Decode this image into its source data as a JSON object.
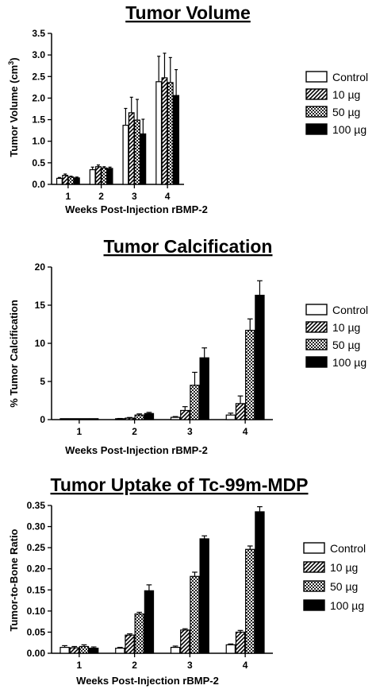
{
  "chart_data": [
    {
      "type": "bar",
      "title": "Tumor Volume",
      "xlabel": "Weeks Post-Injection rBMP-2",
      "ylabel": "Tumor Volume (cm3)",
      "ylabel_main": "Tumor Volume (cm",
      "ylabel_sup": "3",
      "ylabel_close": ")",
      "categories": [
        "1",
        "2",
        "3",
        "4"
      ],
      "ylim": [
        0,
        3.5
      ],
      "yticks": [
        "0.0",
        "0.5",
        "1.0",
        "1.5",
        "2.0",
        "2.5",
        "3.0",
        "3.5"
      ],
      "series": [
        {
          "name": "Control",
          "pattern": "open",
          "values": [
            0.14,
            0.34,
            1.37,
            2.38
          ],
          "errors": [
            0.02,
            0.06,
            0.39,
            0.59
          ]
        },
        {
          "name": "10 µg",
          "pattern": "hatch",
          "values": [
            0.21,
            0.41,
            1.66,
            2.47
          ],
          "errors": [
            0.03,
            0.04,
            0.36,
            0.57
          ]
        },
        {
          "name": "50 µg",
          "pattern": "checker",
          "values": [
            0.17,
            0.38,
            1.49,
            2.36
          ],
          "errors": [
            0.02,
            0.03,
            0.48,
            0.58
          ]
        },
        {
          "name": "100 µg",
          "pattern": "solid",
          "values": [
            0.15,
            0.37,
            1.17,
            2.06
          ],
          "errors": [
            0.02,
            0.03,
            0.34,
            0.6
          ]
        }
      ],
      "legend": "right",
      "grid": false
    },
    {
      "type": "bar",
      "title": "Tumor Calcification",
      "xlabel": "Weeks Post-Injection rBMP-2",
      "ylabel": "% Tumor Calcification",
      "categories": [
        "1",
        "2",
        "3",
        "4"
      ],
      "ylim": [
        0,
        20
      ],
      "yticks": [
        "0",
        "5",
        "10",
        "15",
        "20"
      ],
      "series": [
        {
          "name": "Control",
          "pattern": "open",
          "values": [
            0.05,
            0.1,
            0.3,
            0.6
          ],
          "errors": [
            0.02,
            0.05,
            0.1,
            0.25
          ]
        },
        {
          "name": "10 µg",
          "pattern": "hatch",
          "values": [
            0.05,
            0.2,
            1.2,
            2.1
          ],
          "errors": [
            0.02,
            0.08,
            0.5,
            1.0
          ]
        },
        {
          "name": "50 µg",
          "pattern": "checker",
          "values": [
            0.05,
            0.6,
            4.5,
            11.7
          ],
          "errors": [
            0.02,
            0.15,
            1.7,
            1.5
          ]
        },
        {
          "name": "100 µg",
          "pattern": "solid",
          "values": [
            0.05,
            0.8,
            8.1,
            16.3
          ],
          "errors": [
            0.02,
            0.15,
            1.3,
            1.9
          ]
        }
      ],
      "legend": "right",
      "grid": false
    },
    {
      "type": "bar",
      "title": "Tumor Uptake of Tc-99m-MDP",
      "xlabel": "Weeks Post-Injection rBMP-2",
      "ylabel": "Tumor-to-Bone Ratio",
      "categories": [
        "1",
        "2",
        "3",
        "4"
      ],
      "ylim": [
        0,
        0.35
      ],
      "yticks": [
        "0.00",
        "0.05",
        "0.10",
        "0.15",
        "0.20",
        "0.25",
        "0.30",
        "0.35"
      ],
      "series": [
        {
          "name": "Control",
          "pattern": "open",
          "values": [
            0.014,
            0.012,
            0.014,
            0.02
          ],
          "errors": [
            0.004,
            0.002,
            0.003,
            0.002
          ]
        },
        {
          "name": "10 µg",
          "pattern": "hatch",
          "values": [
            0.013,
            0.043,
            0.055,
            0.05
          ],
          "errors": [
            0.003,
            0.003,
            0.003,
            0.004
          ]
        },
        {
          "name": "50 µg",
          "pattern": "checker",
          "values": [
            0.016,
            0.093,
            0.182,
            0.246
          ],
          "errors": [
            0.004,
            0.004,
            0.01,
            0.008
          ]
        },
        {
          "name": "100 µg",
          "pattern": "solid",
          "values": [
            0.012,
            0.148,
            0.271,
            0.335
          ],
          "errors": [
            0.003,
            0.014,
            0.007,
            0.012
          ]
        }
      ],
      "legend": "right",
      "grid": false
    }
  ]
}
